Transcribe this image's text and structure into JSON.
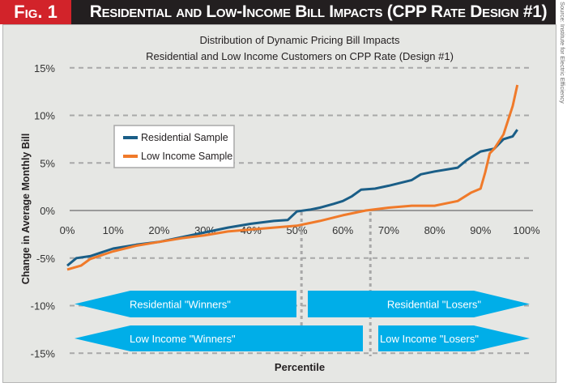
{
  "header": {
    "fig_label": "Fig. 1",
    "title": "Residential and Low-Income Bill Impacts (CPP Rate Design #1)"
  },
  "source": "Source: Institute for Electric Efficiency",
  "chart_data": {
    "type": "line",
    "title": "Distribution of Dynamic Pricing Bill Impacts",
    "subtitle": "Residential and Low Income Customers on CPP Rate (Design #1)",
    "xlabel": "Percentile",
    "ylabel": "Change in Average Monthly Bill",
    "xlim": [
      0,
      100
    ],
    "ylim": [
      -15,
      15
    ],
    "x_ticks": [
      "0%",
      "10%",
      "20%",
      "30%",
      "40%",
      "50%",
      "60%",
      "70%",
      "80%",
      "90%",
      "100%"
    ],
    "y_ticks": [
      "15%",
      "10%",
      "5%",
      "0%",
      "-5%",
      "-10%",
      "-15%"
    ],
    "grid": "horizontal dashed",
    "legend_placement": "top-left",
    "series": [
      {
        "name": "Residential Sample",
        "color": "#1a5e87",
        "x": [
          0,
          2,
          5,
          10,
          15,
          20,
          25,
          30,
          35,
          40,
          45,
          48,
          50,
          53,
          55,
          58,
          60,
          62,
          64,
          67,
          70,
          75,
          77,
          80,
          85,
          87,
          90,
          93,
          95,
          97,
          98
        ],
        "y": [
          -5.8,
          -5.0,
          -4.8,
          -4.0,
          -3.6,
          -3.3,
          -2.8,
          -2.3,
          -1.8,
          -1.4,
          -1.1,
          -1.0,
          -0.1,
          0.1,
          0.3,
          0.7,
          1.0,
          1.5,
          2.2,
          2.3,
          2.6,
          3.2,
          3.8,
          4.1,
          4.5,
          5.3,
          6.2,
          6.5,
          7.5,
          7.8,
          8.5
        ]
      },
      {
        "name": "Low Income Sample",
        "color": "#f07a2a",
        "x": [
          0,
          3,
          5,
          10,
          15,
          20,
          25,
          30,
          35,
          40,
          45,
          50,
          55,
          60,
          65,
          70,
          75,
          80,
          85,
          88,
          90,
          91,
          92,
          93,
          95,
          96,
          97,
          98
        ],
        "y": [
          -6.2,
          -5.8,
          -5.1,
          -4.3,
          -3.7,
          -3.3,
          -2.9,
          -2.6,
          -2.2,
          -2.0,
          -1.8,
          -1.6,
          -1.1,
          -0.5,
          0.0,
          0.3,
          0.5,
          0.5,
          1.0,
          1.9,
          2.3,
          4.0,
          6.0,
          6.5,
          8.0,
          9.5,
          11.0,
          13.2
        ]
      }
    ],
    "thresholds": [
      {
        "series": "Residential Sample",
        "x": 51
      },
      {
        "series": "Low Income Sample",
        "x": 66
      }
    ],
    "annotations": [
      {
        "label": "Residential \"Winners\"",
        "direction": "left",
        "from": 0,
        "to": 50
      },
      {
        "label": "Residential \"Losers\"",
        "direction": "right",
        "from": 52,
        "to": 100
      },
      {
        "label": "Low Income \"Winners\"",
        "direction": "left",
        "from": 0,
        "to": 64
      },
      {
        "label": "Low Income \"Losers\"",
        "direction": "right",
        "from": 68,
        "to": 100
      }
    ],
    "arrow_color": "#00aee8"
  }
}
